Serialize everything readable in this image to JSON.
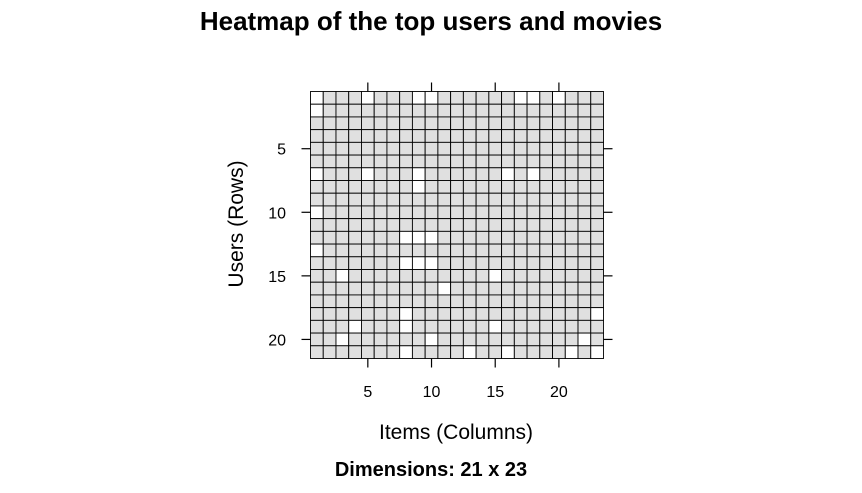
{
  "chart_data": {
    "type": "heatmap",
    "title": "Heatmap of the top users and movies",
    "xlabel": "Items (Columns)",
    "ylabel": "Users (Rows)",
    "n_rows": 21,
    "n_cols": 23,
    "x_ticks": [
      5,
      10,
      15,
      20
    ],
    "y_ticks": [
      5,
      10,
      15,
      20
    ],
    "empty_cells": [
      [
        1,
        1
      ],
      [
        1,
        5
      ],
      [
        1,
        9
      ],
      [
        1,
        10
      ],
      [
        1,
        17
      ],
      [
        1,
        18
      ],
      [
        1,
        20
      ],
      [
        2,
        1
      ],
      [
        7,
        1
      ],
      [
        7,
        5
      ],
      [
        7,
        9
      ],
      [
        7,
        16
      ],
      [
        7,
        18
      ],
      [
        8,
        9
      ],
      [
        10,
        1
      ],
      [
        12,
        8
      ],
      [
        12,
        9
      ],
      [
        12,
        10
      ],
      [
        13,
        1
      ],
      [
        14,
        8
      ],
      [
        14,
        9
      ],
      [
        14,
        10
      ],
      [
        15,
        3
      ],
      [
        15,
        15
      ],
      [
        16,
        11
      ],
      [
        18,
        8
      ],
      [
        18,
        23
      ],
      [
        19,
        4
      ],
      [
        19,
        8
      ],
      [
        19,
        15
      ],
      [
        20,
        3
      ],
      [
        20,
        10
      ],
      [
        20,
        22
      ],
      [
        21,
        8
      ],
      [
        21,
        13
      ],
      [
        21,
        16
      ],
      [
        21,
        21
      ],
      [
        21,
        23
      ]
    ],
    "colors": {
      "filled": "#e0e0e0",
      "empty": "#ffffff",
      "grid": "#000000"
    }
  },
  "footer": {
    "dimensions_text": "Dimensions: 21 x 23"
  }
}
